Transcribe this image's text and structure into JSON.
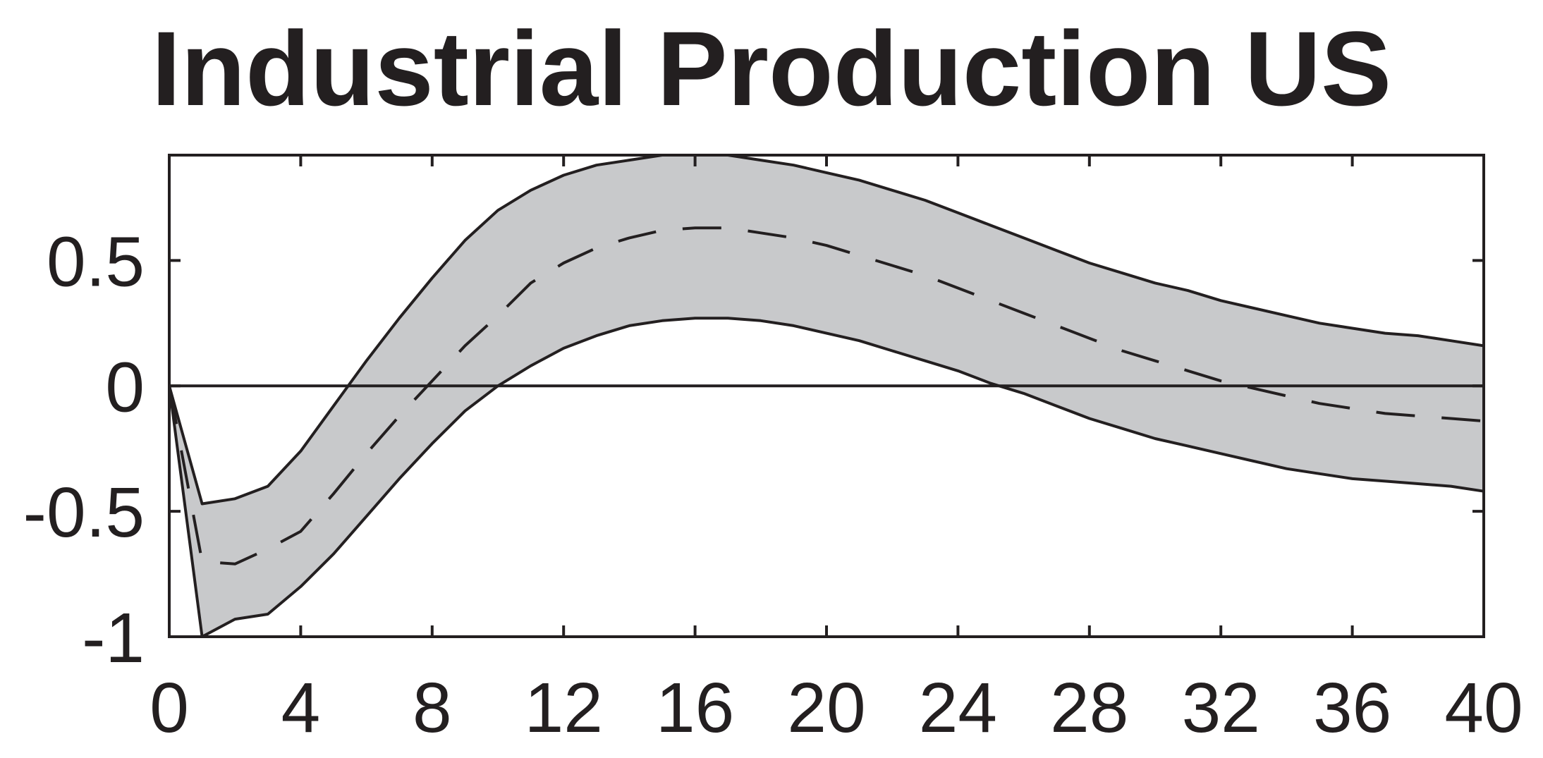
{
  "chart_data": {
    "type": "line",
    "title": "Industrial Production US",
    "xlabel": "",
    "ylabel": "",
    "xlim": [
      0,
      40
    ],
    "ylim": [
      -1,
      0.92
    ],
    "x_ticks": [
      0,
      4,
      8,
      12,
      16,
      20,
      24,
      28,
      32,
      36,
      40
    ],
    "x_tick_labels": [
      "0",
      "4",
      "8",
      "12",
      "16",
      "20",
      "24",
      "28",
      "32",
      "36",
      "40"
    ],
    "y_ticks": [
      -1,
      -0.5,
      0,
      0.5
    ],
    "y_tick_labels": [
      "-1",
      "-0.5",
      "0",
      "0.5"
    ],
    "grid": false,
    "zero_line": true,
    "colors": {
      "band": "#c8c9cb",
      "line": "#231f20",
      "axis": "#231f20",
      "background": "#ffffff"
    },
    "series": [
      {
        "role": "median",
        "style": "dashed",
        "x": [
          0,
          1,
          2,
          3,
          4,
          5,
          6,
          7,
          8,
          9,
          10,
          11,
          12,
          13,
          14,
          15,
          16,
          17,
          18,
          19,
          20,
          21,
          22,
          23,
          24,
          25,
          26,
          27,
          28,
          29,
          30,
          31,
          32,
          33,
          34,
          35,
          36,
          37,
          38,
          39,
          40
        ],
        "values": [
          0,
          -0.7,
          -0.71,
          -0.65,
          -0.58,
          -0.43,
          -0.27,
          -0.12,
          0.02,
          0.16,
          0.28,
          0.41,
          0.49,
          0.55,
          0.59,
          0.62,
          0.63,
          0.63,
          0.61,
          0.59,
          0.56,
          0.52,
          0.48,
          0.44,
          0.39,
          0.34,
          0.29,
          0.24,
          0.19,
          0.14,
          0.1,
          0.06,
          0.02,
          -0.01,
          -0.04,
          -0.07,
          -0.09,
          -0.11,
          -0.12,
          -0.13,
          -0.14
        ]
      },
      {
        "role": "upper-bound",
        "style": "solid",
        "x": [
          0,
          1,
          2,
          3,
          4,
          5,
          6,
          7,
          8,
          9,
          10,
          11,
          12,
          13,
          14,
          15,
          16,
          17,
          18,
          19,
          20,
          21,
          22,
          23,
          24,
          25,
          26,
          27,
          28,
          29,
          30,
          31,
          32,
          33,
          34,
          35,
          36,
          37,
          38,
          39,
          40
        ],
        "values": [
          0,
          -0.47,
          -0.45,
          -0.4,
          -0.26,
          -0.08,
          0.1,
          0.27,
          0.43,
          0.58,
          0.7,
          0.78,
          0.84,
          0.88,
          0.9,
          0.92,
          0.92,
          0.92,
          0.9,
          0.88,
          0.85,
          0.82,
          0.78,
          0.74,
          0.69,
          0.64,
          0.59,
          0.54,
          0.49,
          0.45,
          0.41,
          0.38,
          0.34,
          0.31,
          0.28,
          0.25,
          0.23,
          0.21,
          0.2,
          0.18,
          0.16
        ]
      },
      {
        "role": "lower-bound",
        "style": "solid",
        "x": [
          0,
          1,
          2,
          3,
          4,
          5,
          6,
          7,
          8,
          9,
          10,
          11,
          12,
          13,
          14,
          15,
          16,
          17,
          18,
          19,
          20,
          21,
          22,
          23,
          24,
          25,
          26,
          27,
          28,
          29,
          30,
          31,
          32,
          33,
          34,
          35,
          36,
          37,
          38,
          39,
          40
        ],
        "values": [
          0,
          -1.0,
          -0.93,
          -0.91,
          -0.8,
          -0.67,
          -0.52,
          -0.37,
          -0.23,
          -0.1,
          0.0,
          0.08,
          0.15,
          0.2,
          0.24,
          0.26,
          0.27,
          0.27,
          0.26,
          0.24,
          0.21,
          0.18,
          0.14,
          0.1,
          0.06,
          0.01,
          -0.03,
          -0.08,
          -0.13,
          -0.17,
          -0.21,
          -0.24,
          -0.27,
          -0.3,
          -0.33,
          -0.35,
          -0.37,
          -0.38,
          -0.39,
          -0.4,
          -0.42
        ]
      }
    ]
  }
}
